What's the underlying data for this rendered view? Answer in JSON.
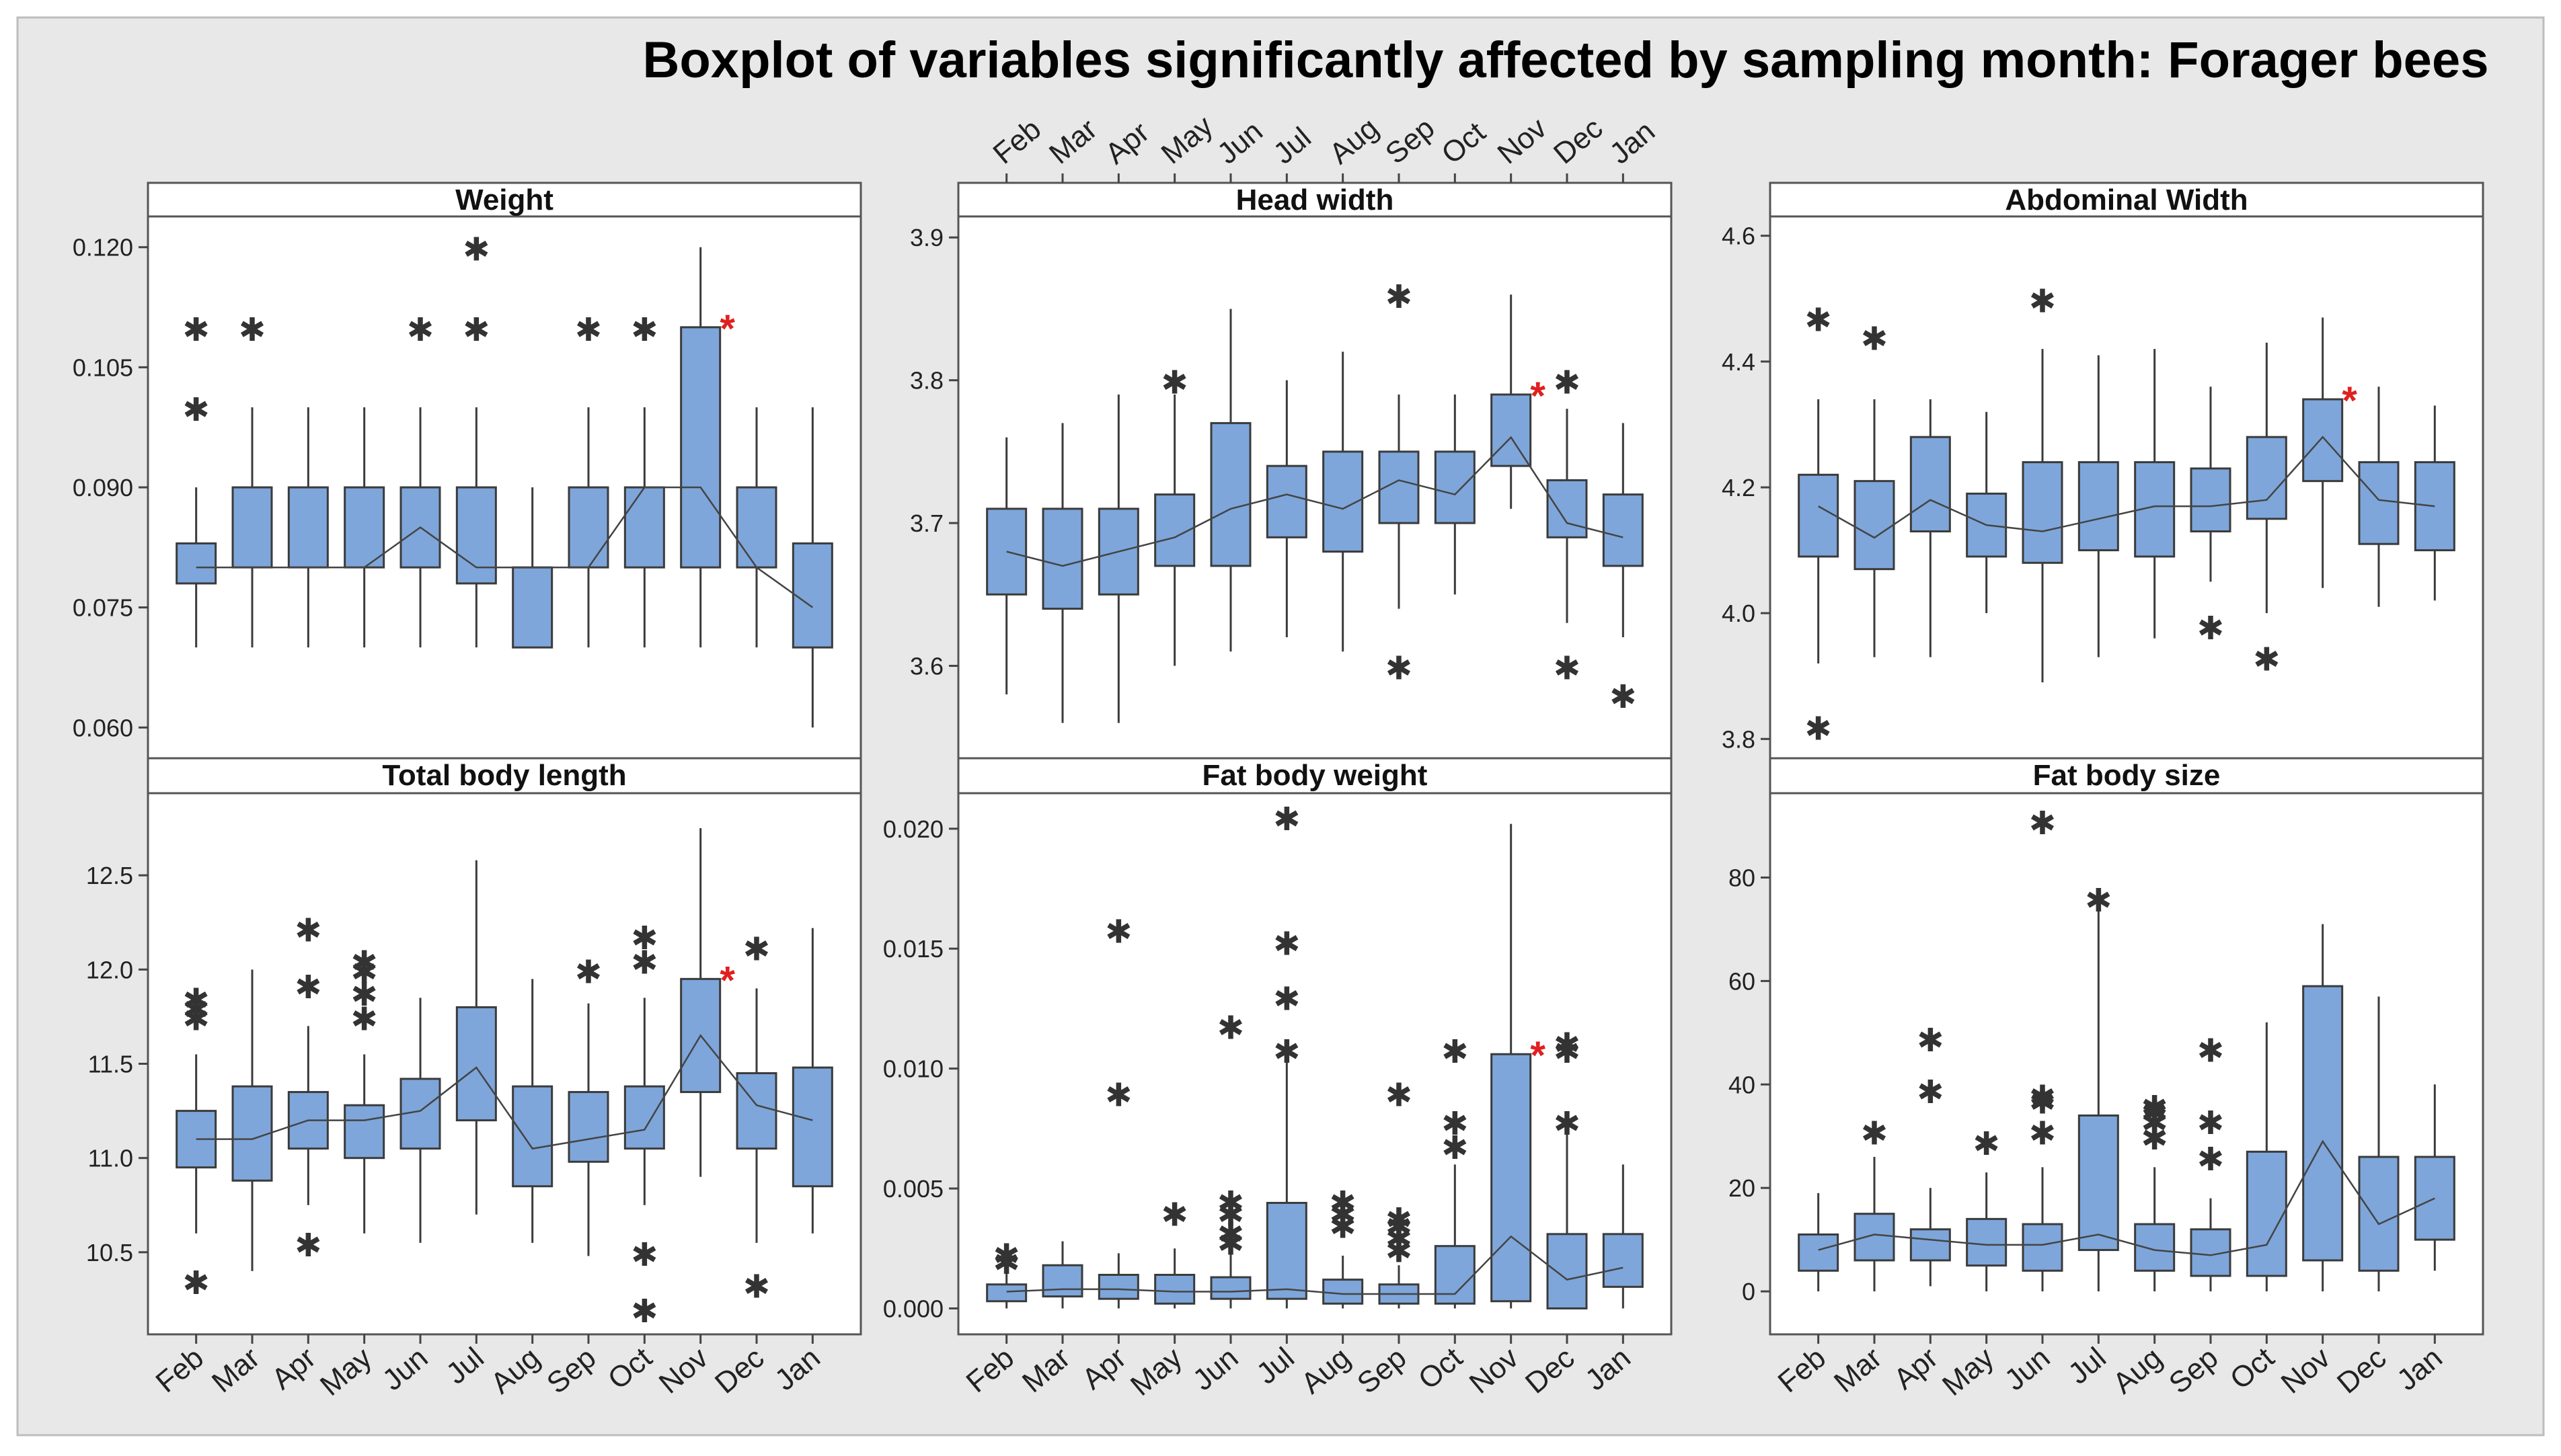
{
  "title": "Boxplot of variables significantly affected by sampling month: Forager bees",
  "months": [
    "Feb",
    "Mar",
    "Apr",
    "May",
    "Jun",
    "Jul",
    "Aug",
    "Sep",
    "Oct",
    "Nov",
    "Dec",
    "Jan"
  ],
  "colors": {
    "box": "#7EA6DA",
    "stroke": "#3b3b3b",
    "highlight": "#e02020",
    "background": "#e8e8e8",
    "panel": "#ffffff"
  },
  "chart_data": [
    {
      "type": "box",
      "title": "Weight",
      "ylim": [
        0.057,
        0.123
      ],
      "yticks": [
        0.06,
        0.075,
        0.09,
        0.105,
        0.12
      ],
      "tick_labels": [
        "0.060",
        "0.075",
        "0.090",
        "0.105",
        "0.120"
      ],
      "categories": [
        "Feb",
        "Mar",
        "Apr",
        "May",
        "Jun",
        "Jul",
        "Aug",
        "Sep",
        "Oct",
        "Nov",
        "Dec",
        "Jan"
      ],
      "highlight_index": 9,
      "boxes": [
        {
          "wlo": 0.07,
          "q1": 0.078,
          "q3": 0.083,
          "whi": 0.09,
          "mean": 0.08,
          "outliers": [
            0.1,
            0.11
          ]
        },
        {
          "wlo": 0.07,
          "q1": 0.08,
          "q3": 0.09,
          "whi": 0.1,
          "mean": 0.08,
          "outliers": [
            0.11
          ]
        },
        {
          "wlo": 0.07,
          "q1": 0.08,
          "q3": 0.09,
          "whi": 0.1,
          "mean": 0.08,
          "outliers": []
        },
        {
          "wlo": 0.07,
          "q1": 0.08,
          "q3": 0.09,
          "whi": 0.1,
          "mean": 0.08,
          "outliers": []
        },
        {
          "wlo": 0.07,
          "q1": 0.08,
          "q3": 0.09,
          "whi": 0.1,
          "mean": 0.085,
          "outliers": [
            0.11
          ]
        },
        {
          "wlo": 0.07,
          "q1": 0.078,
          "q3": 0.09,
          "whi": 0.1,
          "mean": 0.08,
          "outliers": [
            0.11,
            0.12
          ]
        },
        {
          "wlo": 0.07,
          "q1": 0.07,
          "q3": 0.08,
          "whi": 0.09,
          "mean": 0.08,
          "outliers": []
        },
        {
          "wlo": 0.07,
          "q1": 0.08,
          "q3": 0.09,
          "whi": 0.1,
          "mean": 0.08,
          "outliers": [
            0.11
          ]
        },
        {
          "wlo": 0.07,
          "q1": 0.08,
          "q3": 0.09,
          "whi": 0.1,
          "mean": 0.09,
          "outliers": [
            0.11
          ]
        },
        {
          "wlo": 0.07,
          "q1": 0.08,
          "q3": 0.11,
          "whi": 0.12,
          "mean": 0.09,
          "outliers": []
        },
        {
          "wlo": 0.07,
          "q1": 0.08,
          "q3": 0.09,
          "whi": 0.1,
          "mean": 0.08,
          "outliers": []
        },
        {
          "wlo": 0.06,
          "q1": 0.07,
          "q3": 0.083,
          "whi": 0.1,
          "mean": 0.075,
          "outliers": []
        }
      ]
    },
    {
      "type": "box",
      "title": "Head width",
      "ylim": [
        3.54,
        3.91
      ],
      "yticks": [
        3.6,
        3.7,
        3.8,
        3.9
      ],
      "tick_labels": [
        "3.6",
        "3.7",
        "3.8",
        "3.9"
      ],
      "categories": [
        "Feb",
        "Mar",
        "Apr",
        "May",
        "Jun",
        "Jul",
        "Aug",
        "Sep",
        "Oct",
        "Nov",
        "Dec",
        "Jan"
      ],
      "highlight_index": 9,
      "boxes": [
        {
          "wlo": 3.58,
          "q1": 3.65,
          "q3": 3.71,
          "whi": 3.76,
          "mean": 3.68,
          "outliers": []
        },
        {
          "wlo": 3.56,
          "q1": 3.64,
          "q3": 3.71,
          "whi": 3.77,
          "mean": 3.67,
          "outliers": []
        },
        {
          "wlo": 3.56,
          "q1": 3.65,
          "q3": 3.71,
          "whi": 3.79,
          "mean": 3.68,
          "outliers": []
        },
        {
          "wlo": 3.6,
          "q1": 3.67,
          "q3": 3.72,
          "whi": 3.79,
          "mean": 3.69,
          "outliers": [
            3.8
          ]
        },
        {
          "wlo": 3.61,
          "q1": 3.67,
          "q3": 3.77,
          "whi": 3.85,
          "mean": 3.71,
          "outliers": []
        },
        {
          "wlo": 3.62,
          "q1": 3.69,
          "q3": 3.74,
          "whi": 3.8,
          "mean": 3.72,
          "outliers": []
        },
        {
          "wlo": 3.61,
          "q1": 3.68,
          "q3": 3.75,
          "whi": 3.82,
          "mean": 3.71,
          "outliers": []
        },
        {
          "wlo": 3.64,
          "q1": 3.7,
          "q3": 3.75,
          "whi": 3.79,
          "mean": 3.73,
          "outliers": [
            3.6,
            3.86
          ]
        },
        {
          "wlo": 3.65,
          "q1": 3.7,
          "q3": 3.75,
          "whi": 3.79,
          "mean": 3.72,
          "outliers": []
        },
        {
          "wlo": 3.71,
          "q1": 3.74,
          "q3": 3.79,
          "whi": 3.86,
          "mean": 3.76,
          "outliers": []
        },
        {
          "wlo": 3.63,
          "q1": 3.69,
          "q3": 3.73,
          "whi": 3.78,
          "mean": 3.7,
          "outliers": [
            3.6,
            3.8
          ]
        },
        {
          "wlo": 3.62,
          "q1": 3.67,
          "q3": 3.72,
          "whi": 3.77,
          "mean": 3.69,
          "outliers": [
            3.58
          ]
        }
      ]
    },
    {
      "type": "box",
      "title": "Abdominal Width",
      "ylim": [
        3.78,
        4.62
      ],
      "yticks": [
        3.8,
        4.0,
        4.2,
        4.4,
        4.6
      ],
      "tick_labels": [
        "3.8",
        "4.0",
        "4.2",
        "4.4",
        "4.6"
      ],
      "categories": [
        "Feb",
        "Mar",
        "Apr",
        "May",
        "Jun",
        "Jul",
        "Aug",
        "Sep",
        "Oct",
        "Nov",
        "Dec",
        "Jan"
      ],
      "highlight_index": 9,
      "boxes": [
        {
          "wlo": 3.92,
          "q1": 4.09,
          "q3": 4.22,
          "whi": 4.34,
          "mean": 4.17,
          "outliers": [
            3.82,
            4.47
          ]
        },
        {
          "wlo": 3.93,
          "q1": 4.07,
          "q3": 4.21,
          "whi": 4.34,
          "mean": 4.12,
          "outliers": [
            4.44
          ]
        },
        {
          "wlo": 3.93,
          "q1": 4.13,
          "q3": 4.28,
          "whi": 4.34,
          "mean": 4.18,
          "outliers": []
        },
        {
          "wlo": 4.0,
          "q1": 4.09,
          "q3": 4.19,
          "whi": 4.32,
          "mean": 4.14,
          "outliers": []
        },
        {
          "wlo": 3.89,
          "q1": 4.08,
          "q3": 4.24,
          "whi": 4.42,
          "mean": 4.13,
          "outliers": [
            4.5
          ]
        },
        {
          "wlo": 3.93,
          "q1": 4.1,
          "q3": 4.24,
          "whi": 4.41,
          "mean": 4.15,
          "outliers": []
        },
        {
          "wlo": 3.96,
          "q1": 4.09,
          "q3": 4.24,
          "whi": 4.42,
          "mean": 4.17,
          "outliers": []
        },
        {
          "wlo": 4.05,
          "q1": 4.13,
          "q3": 4.23,
          "whi": 4.36,
          "mean": 4.17,
          "outliers": [
            3.98
          ]
        },
        {
          "wlo": 4.0,
          "q1": 4.15,
          "q3": 4.28,
          "whi": 4.43,
          "mean": 4.18,
          "outliers": [
            3.93
          ]
        },
        {
          "wlo": 4.04,
          "q1": 4.21,
          "q3": 4.34,
          "whi": 4.47,
          "mean": 4.28,
          "outliers": []
        },
        {
          "wlo": 4.01,
          "q1": 4.11,
          "q3": 4.24,
          "whi": 4.36,
          "mean": 4.18,
          "outliers": []
        },
        {
          "wlo": 4.02,
          "q1": 4.1,
          "q3": 4.24,
          "whi": 4.33,
          "mean": 4.17,
          "outliers": []
        }
      ]
    },
    {
      "type": "box",
      "title": "Total body length",
      "ylim": [
        10.1,
        12.9
      ],
      "yticks": [
        10.5,
        11.0,
        11.5,
        12.0,
        12.5
      ],
      "tick_labels": [
        "10.5",
        "11.0",
        "11.5",
        "12.0",
        "12.5"
      ],
      "categories": [
        "Feb",
        "Mar",
        "Apr",
        "May",
        "Jun",
        "Jul",
        "Aug",
        "Sep",
        "Oct",
        "Nov",
        "Dec",
        "Jan"
      ],
      "highlight_index": 9,
      "boxes": [
        {
          "wlo": 10.6,
          "q1": 10.95,
          "q3": 11.25,
          "whi": 11.55,
          "mean": 11.1,
          "outliers": [
            10.35,
            11.75,
            11.8,
            11.85
          ]
        },
        {
          "wlo": 10.4,
          "q1": 10.88,
          "q3": 11.38,
          "whi": 12.0,
          "mean": 11.1,
          "outliers": []
        },
        {
          "wlo": 10.75,
          "q1": 11.05,
          "q3": 11.35,
          "whi": 11.7,
          "mean": 11.2,
          "outliers": [
            10.55,
            11.92,
            12.22
          ]
        },
        {
          "wlo": 10.6,
          "q1": 11.0,
          "q3": 11.28,
          "whi": 11.55,
          "mean": 11.2,
          "outliers": [
            11.75,
            11.88,
            12.0,
            12.05
          ]
        },
        {
          "wlo": 10.55,
          "q1": 11.05,
          "q3": 11.42,
          "whi": 11.85,
          "mean": 11.25,
          "outliers": []
        },
        {
          "wlo": 10.7,
          "q1": 11.2,
          "q3": 11.8,
          "whi": 12.58,
          "mean": 11.48,
          "outliers": []
        },
        {
          "wlo": 10.55,
          "q1": 10.85,
          "q3": 11.38,
          "whi": 11.95,
          "mean": 11.05,
          "outliers": []
        },
        {
          "wlo": 10.48,
          "q1": 10.98,
          "q3": 11.35,
          "whi": 11.82,
          "mean": 11.1,
          "outliers": [
            12.0
          ]
        },
        {
          "wlo": 10.75,
          "q1": 11.05,
          "q3": 11.38,
          "whi": 11.85,
          "mean": 11.15,
          "outliers": [
            10.2,
            10.5,
            12.05,
            12.18
          ]
        },
        {
          "wlo": 10.9,
          "q1": 11.35,
          "q3": 11.95,
          "whi": 12.75,
          "mean": 11.65,
          "outliers": []
        },
        {
          "wlo": 10.55,
          "q1": 11.05,
          "q3": 11.45,
          "whi": 11.9,
          "mean": 11.28,
          "outliers": [
            10.33,
            12.12
          ]
        },
        {
          "wlo": 10.6,
          "q1": 10.85,
          "q3": 11.48,
          "whi": 12.22,
          "mean": 11.2,
          "outliers": []
        }
      ]
    },
    {
      "type": "box",
      "title": "Fat body weight",
      "ylim": [
        -0.0008,
        0.0212
      ],
      "yticks": [
        0.0,
        0.005,
        0.01,
        0.015,
        0.02
      ],
      "tick_labels": [
        "0.000",
        "0.005",
        "0.010",
        "0.015",
        "0.020"
      ],
      "categories": [
        "Feb",
        "Mar",
        "Apr",
        "May",
        "Jun",
        "Jul",
        "Aug",
        "Sep",
        "Oct",
        "Nov",
        "Dec",
        "Jan"
      ],
      "highlight_index": 9,
      "boxes": [
        {
          "wlo": 0.0,
          "q1": 0.0003,
          "q3": 0.001,
          "whi": 0.0015,
          "mean": 0.0007,
          "outliers": [
            0.002,
            0.0023
          ]
        },
        {
          "wlo": 0.0,
          "q1": 0.0005,
          "q3": 0.0018,
          "whi": 0.0028,
          "mean": 0.0008,
          "outliers": []
        },
        {
          "wlo": 0.0,
          "q1": 0.0004,
          "q3": 0.0014,
          "whi": 0.0023,
          "mean": 0.0008,
          "outliers": [
            0.009,
            0.0158
          ]
        },
        {
          "wlo": 0.0,
          "q1": 0.0002,
          "q3": 0.0014,
          "whi": 0.0025,
          "mean": 0.0007,
          "outliers": [
            0.004
          ]
        },
        {
          "wlo": 0.0,
          "q1": 0.0004,
          "q3": 0.0013,
          "whi": 0.0023,
          "mean": 0.0007,
          "outliers": [
            0.0028,
            0.0032,
            0.004,
            0.0045,
            0.0118
          ]
        },
        {
          "wlo": 0.0,
          "q1": 0.0004,
          "q3": 0.0044,
          "whi": 0.0105,
          "mean": 0.0008,
          "outliers": [
            0.0108,
            0.013,
            0.0153,
            0.0205
          ]
        },
        {
          "wlo": 0.0,
          "q1": 0.0002,
          "q3": 0.0012,
          "whi": 0.0022,
          "mean": 0.0006,
          "outliers": [
            0.0035,
            0.004,
            0.0045
          ]
        },
        {
          "wlo": 0.0,
          "q1": 0.0002,
          "q3": 0.001,
          "whi": 0.0018,
          "mean": 0.0006,
          "outliers": [
            0.0025,
            0.003,
            0.0035,
            0.0038,
            0.009
          ]
        },
        {
          "wlo": 0.0,
          "q1": 0.0002,
          "q3": 0.0026,
          "whi": 0.006,
          "mean": 0.0006,
          "outliers": [
            0.0068,
            0.0078,
            0.0108
          ]
        },
        {
          "wlo": 0.0,
          "q1": 0.0003,
          "q3": 0.0106,
          "whi": 0.0202,
          "mean": 0.003,
          "outliers": []
        },
        {
          "wlo": 0.0,
          "q1": 0.0,
          "q3": 0.0031,
          "whi": 0.0073,
          "mean": 0.0012,
          "outliers": [
            0.0078,
            0.0108,
            0.0111
          ]
        },
        {
          "wlo": 0.0,
          "q1": 0.0009,
          "q3": 0.0031,
          "whi": 0.006,
          "mean": 0.0017,
          "outliers": []
        }
      ]
    },
    {
      "type": "box",
      "title": "Fat body size",
      "ylim": [
        -7,
        95
      ],
      "yticks": [
        0,
        20,
        40,
        60,
        80
      ],
      "tick_labels": [
        "0",
        "20",
        "40",
        "60",
        "80"
      ],
      "categories": [
        "Feb",
        "Mar",
        "Apr",
        "May",
        "Jun",
        "Jul",
        "Aug",
        "Sep",
        "Oct",
        "Nov",
        "Dec",
        "Jan"
      ],
      "highlight_index": -1,
      "boxes": [
        {
          "wlo": 0,
          "q1": 4,
          "q3": 11,
          "whi": 19,
          "mean": 8,
          "outliers": []
        },
        {
          "wlo": 0,
          "q1": 6,
          "q3": 15,
          "whi": 26,
          "mean": 11,
          "outliers": [
            31
          ]
        },
        {
          "wlo": 1,
          "q1": 6,
          "q3": 12,
          "whi": 20,
          "mean": 10,
          "outliers": [
            39,
            49
          ]
        },
        {
          "wlo": 0,
          "q1": 5,
          "q3": 14,
          "whi": 23,
          "mean": 9,
          "outliers": [
            29
          ]
        },
        {
          "wlo": 0,
          "q1": 4,
          "q3": 13,
          "whi": 24,
          "mean": 9,
          "outliers": [
            31,
            37,
            38,
            91
          ]
        },
        {
          "wlo": 0,
          "q1": 8,
          "q3": 34,
          "whi": 74,
          "mean": 11,
          "outliers": [
            76
          ]
        },
        {
          "wlo": 0,
          "q1": 4,
          "q3": 13,
          "whi": 24,
          "mean": 8,
          "outliers": [
            30,
            33,
            35,
            36
          ]
        },
        {
          "wlo": 0,
          "q1": 3,
          "q3": 12,
          "whi": 18,
          "mean": 7,
          "outliers": [
            26,
            33,
            47
          ]
        },
        {
          "wlo": 0,
          "q1": 3,
          "q3": 27,
          "whi": 52,
          "mean": 9,
          "outliers": []
        },
        {
          "wlo": 0,
          "q1": 6,
          "q3": 59,
          "whi": 71,
          "mean": 29,
          "outliers": []
        },
        {
          "wlo": 0,
          "q1": 4,
          "q3": 26,
          "whi": 57,
          "mean": 13,
          "outliers": []
        },
        {
          "wlo": 4,
          "q1": 10,
          "q3": 26,
          "whi": 40,
          "mean": 18,
          "outliers": []
        }
      ]
    }
  ]
}
